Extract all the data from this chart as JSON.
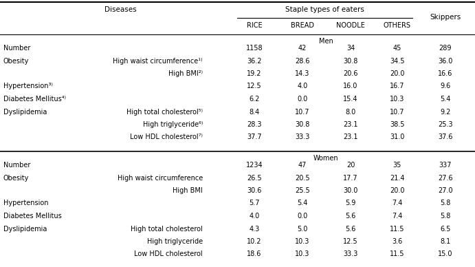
{
  "col_headers": [
    "RICE",
    "BREAD",
    "NOODLE",
    "OTHERS",
    "Skippers"
  ],
  "men_rows": [
    [
      "Number",
      "",
      "1158",
      "42",
      "34",
      "45",
      "289"
    ],
    [
      "Obesity",
      "High waist circumference¹⁾",
      "36.2",
      "28.6",
      "30.8",
      "34.5",
      "36.0"
    ],
    [
      "",
      "High BMI²⁾",
      "19.2",
      "14.3",
      "20.6",
      "20.0",
      "16.6"
    ],
    [
      "Hypertension³⁾",
      "",
      "12.5",
      "4.0",
      "16.0",
      "16.7",
      "9.6"
    ],
    [
      "Diabetes Mellitus⁴⁾",
      "",
      "6.2",
      "0.0",
      "15.4",
      "10.3",
      "5.4"
    ],
    [
      "Dyslipidemia",
      "High total cholesterol⁵⁾",
      "8.4",
      "10.7",
      "8.0",
      "10.7",
      "9.2"
    ],
    [
      "",
      "High triglyceride⁶⁾",
      "28.3",
      "30.8",
      "23.1",
      "38.5",
      "25.3"
    ],
    [
      "",
      "Low HDL cholesterol⁷⁾",
      "37.7",
      "33.3",
      "23.1",
      "31.0",
      "37.6"
    ]
  ],
  "women_rows": [
    [
      "Number",
      "",
      "1234",
      "47",
      "20",
      "35",
      "337"
    ],
    [
      "Obesity",
      "High waist circumference",
      "26.5",
      "20.5",
      "17.7",
      "21.4",
      "27.6"
    ],
    [
      "",
      "High BMI",
      "30.6",
      "25.5",
      "30.0",
      "20.0",
      "27.0"
    ],
    [
      "Hypertension",
      "",
      "5.7",
      "5.4",
      "5.9",
      "7.4",
      "5.8"
    ],
    [
      "Diabetes Mellitus",
      "",
      "4.0",
      "0.0",
      "5.6",
      "7.4",
      "5.8"
    ],
    [
      "Dyslipidemia",
      "High total cholesterol",
      "4.3",
      "5.0",
      "5.6",
      "11.5",
      "6.5"
    ],
    [
      "",
      "High triglyceride",
      "10.2",
      "10.3",
      "12.5",
      "3.6",
      "8.1"
    ],
    [
      "",
      "Low HDL cholesterol",
      "18.6",
      "10.3",
      "33.3",
      "11.5",
      "15.0"
    ]
  ],
  "bg_color": "#ffffff",
  "text_color": "#000000",
  "font_size": 7.0
}
